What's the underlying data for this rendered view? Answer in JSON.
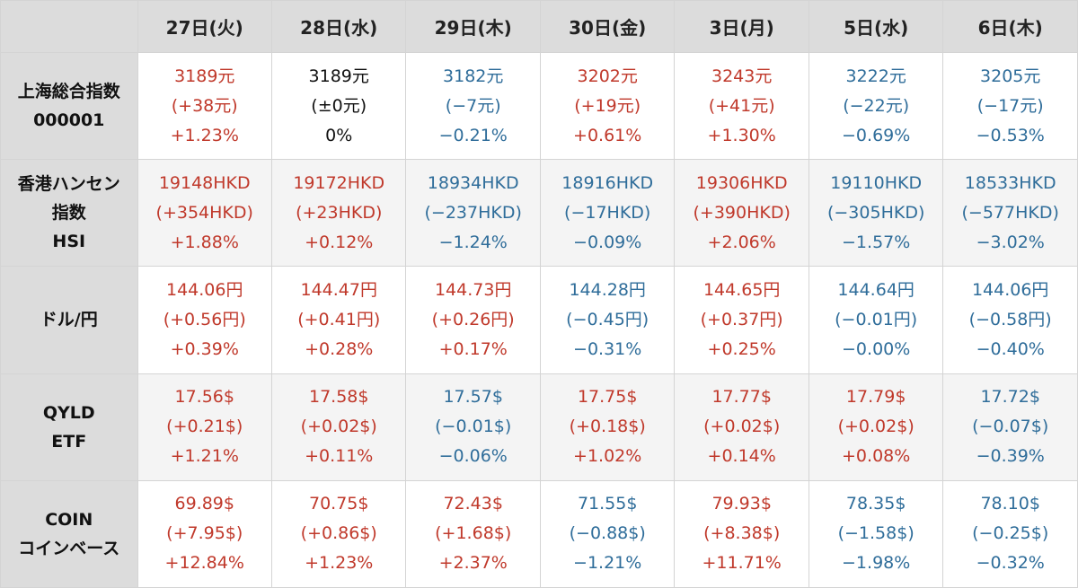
{
  "chart_data": {
    "type": "table",
    "colors": {
      "up": "#c0392b",
      "down": "#2f6d9a",
      "flat": "#111111",
      "header_bg": "#dcdcdc"
    },
    "columns": [
      "27日(火)",
      "28日(水)",
      "29日(木)",
      "30日(金)",
      "3日(月)",
      "5日(水)",
      "6日(木)"
    ],
    "rows": [
      {
        "label": [
          "上海総合指数",
          "000001"
        ],
        "cells": [
          {
            "value": "3189元",
            "change": "(+38元)",
            "percent": "+1.23%",
            "direction": "up"
          },
          {
            "value": "3189元",
            "change": "(±0元)",
            "percent": "0%",
            "direction": "flat"
          },
          {
            "value": "3182元",
            "change": "(−7元)",
            "percent": "−0.21%",
            "direction": "down"
          },
          {
            "value": "3202元",
            "change": "(+19元)",
            "percent": "+0.61%",
            "direction": "up"
          },
          {
            "value": "3243元",
            "change": "(+41元)",
            "percent": "+1.30%",
            "direction": "up"
          },
          {
            "value": "3222元",
            "change": "(−22元)",
            "percent": "−0.69%",
            "direction": "down"
          },
          {
            "value": "3205元",
            "change": "(−17元)",
            "percent": "−0.53%",
            "direction": "down"
          }
        ]
      },
      {
        "label": [
          "香港ハンセン",
          "指数",
          "HSI"
        ],
        "cells": [
          {
            "value": "19148HKD",
            "change": "(+354HKD)",
            "percent": "+1.88%",
            "direction": "up"
          },
          {
            "value": "19172HKD",
            "change": "(+23HKD)",
            "percent": "+0.12%",
            "direction": "up"
          },
          {
            "value": "18934HKD",
            "change": "(−237HKD)",
            "percent": "−1.24%",
            "direction": "down"
          },
          {
            "value": "18916HKD",
            "change": "(−17HKD)",
            "percent": "−0.09%",
            "direction": "down"
          },
          {
            "value": "19306HKD",
            "change": "(+390HKD)",
            "percent": "+2.06%",
            "direction": "up"
          },
          {
            "value": "19110HKD",
            "change": "(−305HKD)",
            "percent": "−1.57%",
            "direction": "down"
          },
          {
            "value": "18533HKD",
            "change": "(−577HKD)",
            "percent": "−3.02%",
            "direction": "down"
          }
        ]
      },
      {
        "label": [
          "ドル/円"
        ],
        "cells": [
          {
            "value": "144.06円",
            "change": "(+0.56円)",
            "percent": "+0.39%",
            "direction": "up"
          },
          {
            "value": "144.47円",
            "change": "(+0.41円)",
            "percent": "+0.28%",
            "direction": "up"
          },
          {
            "value": "144.73円",
            "change": "(+0.26円)",
            "percent": "+0.17%",
            "direction": "up"
          },
          {
            "value": "144.28円",
            "change": "(−0.45円)",
            "percent": "−0.31%",
            "direction": "down"
          },
          {
            "value": "144.65円",
            "change": "(+0.37円)",
            "percent": "+0.25%",
            "direction": "up"
          },
          {
            "value": "144.64円",
            "change": "(−0.01円)",
            "percent": "−0.00%",
            "direction": "down"
          },
          {
            "value": "144.06円",
            "change": "(−0.58円)",
            "percent": "−0.40%",
            "direction": "down"
          }
        ]
      },
      {
        "label": [
          "QYLD",
          "ETF"
        ],
        "cells": [
          {
            "value": "17.56$",
            "change": "(+0.21$)",
            "percent": "+1.21%",
            "direction": "up"
          },
          {
            "value": "17.58$",
            "change": "(+0.02$)",
            "percent": "+0.11%",
            "direction": "up"
          },
          {
            "value": "17.57$",
            "change": "(−0.01$)",
            "percent": "−0.06%",
            "direction": "down"
          },
          {
            "value": "17.75$",
            "change": "(+0.18$)",
            "percent": "+1.02%",
            "direction": "up"
          },
          {
            "value": "17.77$",
            "change": "(+0.02$)",
            "percent": "+0.14%",
            "direction": "up"
          },
          {
            "value": "17.79$",
            "change": "(+0.02$)",
            "percent": "+0.08%",
            "direction": "up"
          },
          {
            "value": "17.72$",
            "change": "(−0.07$)",
            "percent": "−0.39%",
            "direction": "down"
          }
        ]
      },
      {
        "label": [
          "COIN",
          "コインベース"
        ],
        "cells": [
          {
            "value": "69.89$",
            "change": "(+7.95$)",
            "percent": "+12.84%",
            "direction": "up"
          },
          {
            "value": "70.75$",
            "change": "(+0.86$)",
            "percent": "+1.23%",
            "direction": "up"
          },
          {
            "value": "72.43$",
            "change": "(+1.68$)",
            "percent": "+2.37%",
            "direction": "up"
          },
          {
            "value": "71.55$",
            "change": "(−0.88$)",
            "percent": "−1.21%",
            "direction": "down"
          },
          {
            "value": "79.93$",
            "change": "(+8.38$)",
            "percent": "+11.71%",
            "direction": "up"
          },
          {
            "value": "78.35$",
            "change": "(−1.58$)",
            "percent": "−1.98%",
            "direction": "down"
          },
          {
            "value": "78.10$",
            "change": "(−0.25$)",
            "percent": "−0.32%",
            "direction": "down"
          }
        ]
      }
    ]
  }
}
